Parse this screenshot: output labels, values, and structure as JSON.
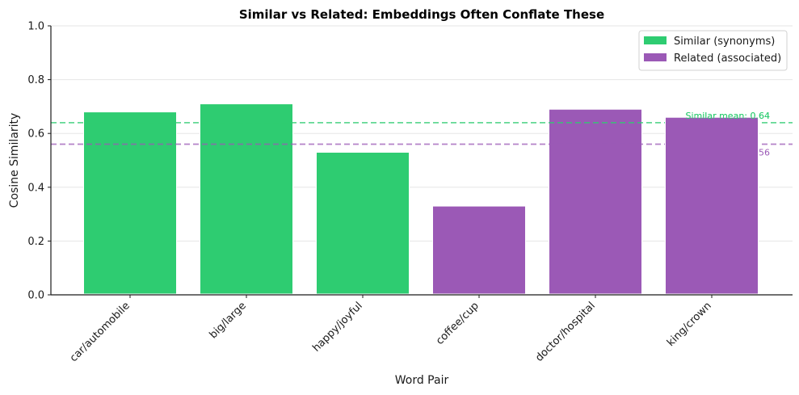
{
  "chart_data": {
    "type": "bar",
    "title": "Similar vs Related: Embeddings Often Conflate These",
    "xlabel": "Word Pair",
    "ylabel": "Cosine Similarity",
    "ylim": [
      0,
      1.0
    ],
    "yticks": [
      0.0,
      0.2,
      0.4,
      0.6,
      0.8,
      1.0
    ],
    "ytick_labels": [
      "0.0",
      "0.2",
      "0.4",
      "0.6",
      "0.8",
      "1.0"
    ],
    "grid": "y",
    "categories": [
      "car/automobile",
      "big/large",
      "happy/joyful",
      "coffee/cup",
      "doctor/hospital",
      "king/crown"
    ],
    "values": [
      0.68,
      0.71,
      0.53,
      0.33,
      0.69,
      0.66
    ],
    "groups": [
      "Similar",
      "Similar",
      "Similar",
      "Related",
      "Related",
      "Related"
    ],
    "series": [
      {
        "name": "Similar (synonyms)",
        "color": "#2ecc71",
        "categories": [
          "car/automobile",
          "big/large",
          "happy/joyful"
        ],
        "values": [
          0.68,
          0.71,
          0.53
        ]
      },
      {
        "name": "Related (associated)",
        "color": "#9b59b6",
        "categories": [
          "coffee/cup",
          "doctor/hospital",
          "king/crown"
        ],
        "values": [
          0.33,
          0.69,
          0.66
        ]
      }
    ],
    "reference_lines": [
      {
        "label": "Similar mean: 0.64",
        "y": 0.64,
        "color": "#2ecc71",
        "style": "dashed"
      },
      {
        "label": "Related mean: 0.56",
        "y": 0.56,
        "color": "#9b59b6",
        "style": "dashed"
      }
    ],
    "legend_position": "upper right"
  }
}
